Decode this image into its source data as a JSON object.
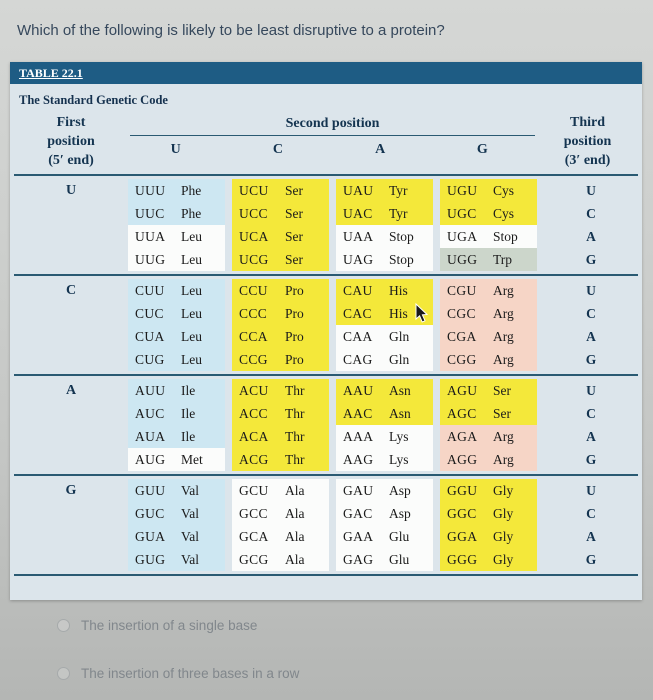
{
  "question": "Which of the following is likely to be least disruptive to a protein?",
  "table": {
    "label": "TABLE 22.1",
    "title": "The Standard Genetic Code",
    "header": {
      "first_lines": [
        "First",
        "position",
        "(5′ end)"
      ],
      "second": "Second position",
      "second_cols": [
        "U",
        "C",
        "A",
        "G"
      ],
      "third_lines": [
        "Third",
        "position",
        "(3′ end)"
      ]
    },
    "cell_colors": {
      "blue": "#cde7f2",
      "yellow": "#f4e83a",
      "pink": "#f6d5c6",
      "white": "#fbfcfb",
      "sage": "#ccd6cb"
    },
    "groups": [
      {
        "first": "U",
        "rows": [
          {
            "cells": [
              {
                "codon": "UUU",
                "aa": "Phe",
                "color": "blue"
              },
              {
                "codon": "UCU",
                "aa": "Ser",
                "color": "yellow"
              },
              {
                "codon": "UAU",
                "aa": "Tyr",
                "color": "yellow"
              },
              {
                "codon": "UGU",
                "aa": "Cys",
                "color": "yellow"
              }
            ],
            "third": "U"
          },
          {
            "cells": [
              {
                "codon": "UUC",
                "aa": "Phe",
                "color": "blue"
              },
              {
                "codon": "UCC",
                "aa": "Ser",
                "color": "yellow"
              },
              {
                "codon": "UAC",
                "aa": "Tyr",
                "color": "yellow"
              },
              {
                "codon": "UGC",
                "aa": "Cys",
                "color": "yellow"
              }
            ],
            "third": "C"
          },
          {
            "cells": [
              {
                "codon": "UUA",
                "aa": "Leu",
                "color": "white"
              },
              {
                "codon": "UCA",
                "aa": "Ser",
                "color": "yellow"
              },
              {
                "codon": "UAA",
                "aa": "Stop",
                "color": "white"
              },
              {
                "codon": "UGA",
                "aa": "Stop",
                "color": "white"
              }
            ],
            "third": "A"
          },
          {
            "cells": [
              {
                "codon": "UUG",
                "aa": "Leu",
                "color": "white"
              },
              {
                "codon": "UCG",
                "aa": "Ser",
                "color": "yellow"
              },
              {
                "codon": "UAG",
                "aa": "Stop",
                "color": "white"
              },
              {
                "codon": "UGG",
                "aa": "Trp",
                "color": "sage"
              }
            ],
            "third": "G"
          }
        ]
      },
      {
        "first": "C",
        "rows": [
          {
            "cells": [
              {
                "codon": "CUU",
                "aa": "Leu",
                "color": "blue"
              },
              {
                "codon": "CCU",
                "aa": "Pro",
                "color": "yellow"
              },
              {
                "codon": "CAU",
                "aa": "His",
                "color": "yellow"
              },
              {
                "codon": "CGU",
                "aa": "Arg",
                "color": "pink"
              }
            ],
            "third": "U"
          },
          {
            "cells": [
              {
                "codon": "CUC",
                "aa": "Leu",
                "color": "blue"
              },
              {
                "codon": "CCC",
                "aa": "Pro",
                "color": "yellow"
              },
              {
                "codon": "CAC",
                "aa": "His",
                "color": "yellow"
              },
              {
                "codon": "CGC",
                "aa": "Arg",
                "color": "pink"
              }
            ],
            "third": "C"
          },
          {
            "cells": [
              {
                "codon": "CUA",
                "aa": "Leu",
                "color": "blue"
              },
              {
                "codon": "CCA",
                "aa": "Pro",
                "color": "yellow"
              },
              {
                "codon": "CAA",
                "aa": "Gln",
                "color": "white"
              },
              {
                "codon": "CGA",
                "aa": "Arg",
                "color": "pink"
              }
            ],
            "third": "A"
          },
          {
            "cells": [
              {
                "codon": "CUG",
                "aa": "Leu",
                "color": "blue"
              },
              {
                "codon": "CCG",
                "aa": "Pro",
                "color": "yellow"
              },
              {
                "codon": "CAG",
                "aa": "Gln",
                "color": "white"
              },
              {
                "codon": "CGG",
                "aa": "Arg",
                "color": "pink"
              }
            ],
            "third": "G"
          }
        ]
      },
      {
        "first": "A",
        "rows": [
          {
            "cells": [
              {
                "codon": "AUU",
                "aa": "Ile",
                "color": "blue"
              },
              {
                "codon": "ACU",
                "aa": "Thr",
                "color": "yellow"
              },
              {
                "codon": "AAU",
                "aa": "Asn",
                "color": "yellow"
              },
              {
                "codon": "AGU",
                "aa": "Ser",
                "color": "yellow"
              }
            ],
            "third": "U"
          },
          {
            "cells": [
              {
                "codon": "AUC",
                "aa": "Ile",
                "color": "blue"
              },
              {
                "codon": "ACC",
                "aa": "Thr",
                "color": "yellow"
              },
              {
                "codon": "AAC",
                "aa": "Asn",
                "color": "yellow"
              },
              {
                "codon": "AGC",
                "aa": "Ser",
                "color": "yellow"
              }
            ],
            "third": "C"
          },
          {
            "cells": [
              {
                "codon": "AUA",
                "aa": "Ile",
                "color": "blue"
              },
              {
                "codon": "ACA",
                "aa": "Thr",
                "color": "yellow"
              },
              {
                "codon": "AAA",
                "aa": "Lys",
                "color": "white"
              },
              {
                "codon": "AGA",
                "aa": "Arg",
                "color": "pink"
              }
            ],
            "third": "A"
          },
          {
            "cells": [
              {
                "codon": "AUG",
                "aa": "Met",
                "color": "white"
              },
              {
                "codon": "ACG",
                "aa": "Thr",
                "color": "yellow"
              },
              {
                "codon": "AAG",
                "aa": "Lys",
                "color": "white"
              },
              {
                "codon": "AGG",
                "aa": "Arg",
                "color": "pink"
              }
            ],
            "third": "G"
          }
        ]
      },
      {
        "first": "G",
        "rows": [
          {
            "cells": [
              {
                "codon": "GUU",
                "aa": "Val",
                "color": "blue"
              },
              {
                "codon": "GCU",
                "aa": "Ala",
                "color": "white"
              },
              {
                "codon": "GAU",
                "aa": "Asp",
                "color": "white"
              },
              {
                "codon": "GGU",
                "aa": "Gly",
                "color": "yellow"
              }
            ],
            "third": "U"
          },
          {
            "cells": [
              {
                "codon": "GUC",
                "aa": "Val",
                "color": "blue"
              },
              {
                "codon": "GCC",
                "aa": "Ala",
                "color": "white"
              },
              {
                "codon": "GAC",
                "aa": "Asp",
                "color": "white"
              },
              {
                "codon": "GGC",
                "aa": "Gly",
                "color": "yellow"
              }
            ],
            "third": "C"
          },
          {
            "cells": [
              {
                "codon": "GUA",
                "aa": "Val",
                "color": "blue"
              },
              {
                "codon": "GCA",
                "aa": "Ala",
                "color": "white"
              },
              {
                "codon": "GAA",
                "aa": "Glu",
                "color": "white"
              },
              {
                "codon": "GGA",
                "aa": "Gly",
                "color": "yellow"
              }
            ],
            "third": "A"
          },
          {
            "cells": [
              {
                "codon": "GUG",
                "aa": "Val",
                "color": "blue"
              },
              {
                "codon": "GCG",
                "aa": "Ala",
                "color": "white"
              },
              {
                "codon": "GAG",
                "aa": "Glu",
                "color": "white"
              },
              {
                "codon": "GGG",
                "aa": "Gly",
                "color": "yellow"
              }
            ],
            "third": "G"
          }
        ]
      }
    ]
  },
  "options": [
    {
      "label": "The insertion of a single base"
    },
    {
      "label": "The insertion of three bases in a row"
    }
  ],
  "colors": {
    "bar_blue": "#1e5c84",
    "table_bg": "#dce5eb",
    "rule_navy": "#2a5a72",
    "header_text": "#143450"
  }
}
